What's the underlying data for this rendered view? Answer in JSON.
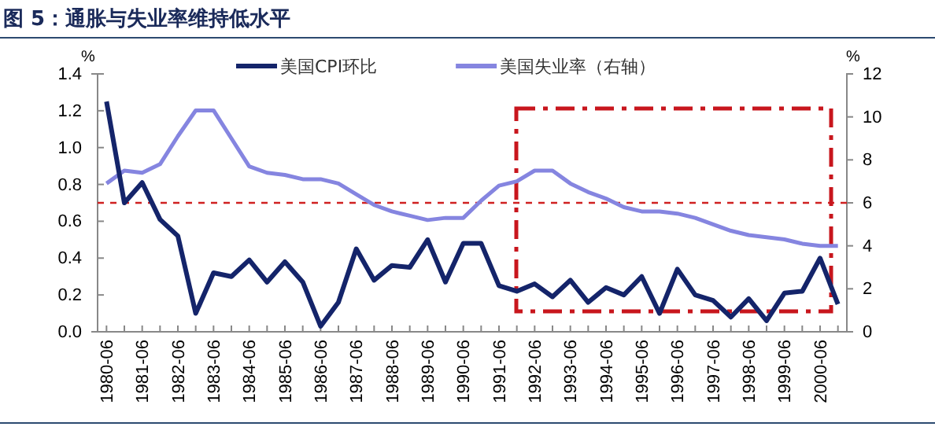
{
  "chart_data": {
    "type": "line",
    "title": "图 5：通胀与失业率维持低水平",
    "ylabel": "%",
    "y2label": "%",
    "categories": [
      "1980-06",
      null,
      "1981-06",
      null,
      "1982-06",
      null,
      "1983-06",
      null,
      "1984-06",
      null,
      "1985-06",
      null,
      "1986-06",
      null,
      "1987-06",
      null,
      "1988-06",
      null,
      "1989-06",
      null,
      "1990-06",
      null,
      "1991-06",
      null,
      "1992-06",
      null,
      "1993-06",
      null,
      "1994-06",
      null,
      "1995-06",
      null,
      "1996-06",
      null,
      "1997-06",
      null,
      "1998-06",
      null,
      "1999-06",
      null,
      "2000-06",
      null
    ],
    "series": [
      {
        "name": "美国CPI环比",
        "color": "#14246a",
        "values": [
          1.25,
          0.7,
          0.81,
          0.61,
          0.52,
          0.1,
          0.32,
          0.3,
          0.39,
          0.27,
          0.38,
          0.27,
          0.03,
          0.16,
          0.45,
          0.28,
          0.36,
          0.35,
          0.5,
          0.27,
          0.48,
          0.48,
          0.25,
          0.22,
          0.26,
          0.19,
          0.28,
          0.16,
          0.24,
          0.2,
          0.3,
          0.1,
          0.34,
          0.2,
          0.17,
          0.08,
          0.18,
          0.06,
          0.21,
          0.22,
          0.4,
          0.15
        ]
      },
      {
        "name": "美国失业率（右轴）",
        "color": "#8585e0",
        "axis": "y2",
        "values": [
          6.9,
          7.5,
          7.4,
          7.8,
          9.1,
          10.3,
          10.3,
          9.0,
          7.7,
          7.4,
          7.3,
          7.1,
          7.1,
          6.9,
          6.4,
          5.9,
          5.6,
          5.4,
          5.2,
          5.3,
          5.3,
          6.1,
          6.8,
          7.0,
          7.5,
          7.5,
          6.9,
          6.5,
          6.2,
          5.8,
          5.6,
          5.6,
          5.5,
          5.3,
          5.0,
          4.7,
          4.5,
          4.4,
          4.3,
          4.1,
          4.0,
          4.0
        ]
      }
    ],
    "ylim": [
      0,
      1.4
    ],
    "yticks": [
      {
        "value": 0,
        "label": "0.0"
      },
      0.2,
      0.4,
      0.6,
      0.8,
      {
        "value": 1,
        "label": "1.0"
      },
      1.2,
      1.4
    ],
    "y2lim": [
      0,
      12
    ],
    "y2ticks": [
      0,
      2,
      4,
      6,
      8,
      10,
      12
    ],
    "ref_lines": [
      {
        "axis": "y",
        "value": 0.7,
        "color": "#d02020",
        "line_style": "dashed"
      }
    ],
    "legend": "top",
    "grid": false
  }
}
